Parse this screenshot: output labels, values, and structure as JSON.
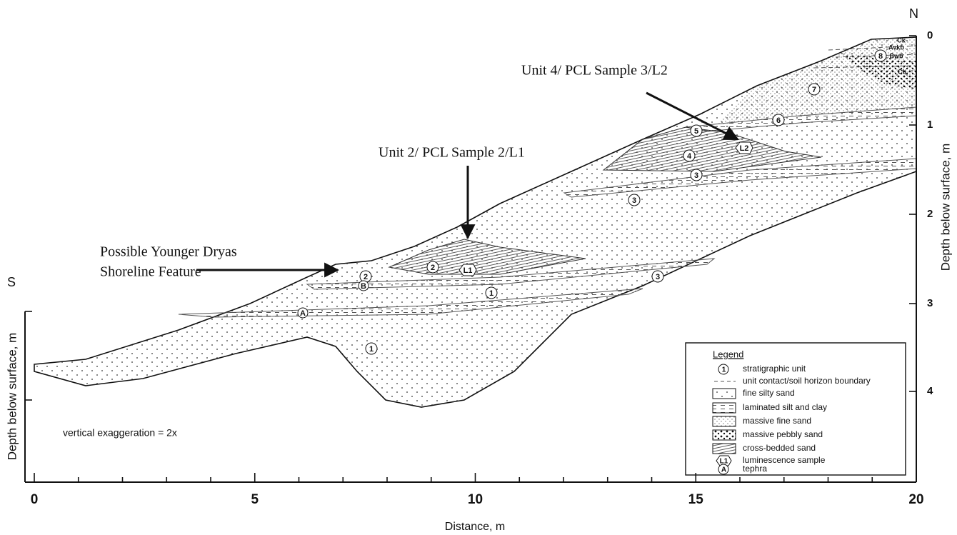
{
  "directions": {
    "south": "S",
    "north": "N"
  },
  "x_axis": {
    "label": "Distance, m",
    "ticks": [
      "0",
      "5",
      "10",
      "15",
      "20"
    ]
  },
  "left_axis": {
    "label": "Depth below surface, m"
  },
  "right_axis": {
    "label": "Depth below surface, m",
    "ticks": [
      "0",
      "1",
      "2",
      "3",
      "4"
    ]
  },
  "annotations": {
    "unit4": "Unit 4/ PCL Sample 3/L2",
    "unit2": "Unit 2/ PCL Sample 2/L1",
    "shoreline": [
      "Possible Younger Dryas",
      "Shoreline Feature"
    ],
    "exaggeration": "vertical exaggeration = 2x"
  },
  "unit_labels": [
    "8",
    "7",
    "6",
    "5",
    "4",
    "3",
    "3",
    "3",
    "2",
    "2",
    "1",
    "1"
  ],
  "tephra_labels": [
    "A",
    "B"
  ],
  "sample_labels": [
    "L1",
    "L2"
  ],
  "horizons": [
    "Ck",
    "Avkb",
    "Bwb",
    "Cb"
  ],
  "legend": {
    "title": "Legend",
    "items": [
      {
        "symbol": "1",
        "label": "stratigraphic unit"
      },
      {
        "label": "unit contact/soil horizon boundary"
      },
      {
        "label": "fine silty sand"
      },
      {
        "label": "laminated silt and clay"
      },
      {
        "label": "massive fine sand"
      },
      {
        "label": "massive pebbly sand"
      },
      {
        "label": "cross-bedded sand"
      },
      {
        "symbol": "L1",
        "label": "luminescence sample"
      },
      {
        "symbol": "A",
        "label": "tephra"
      }
    ]
  }
}
